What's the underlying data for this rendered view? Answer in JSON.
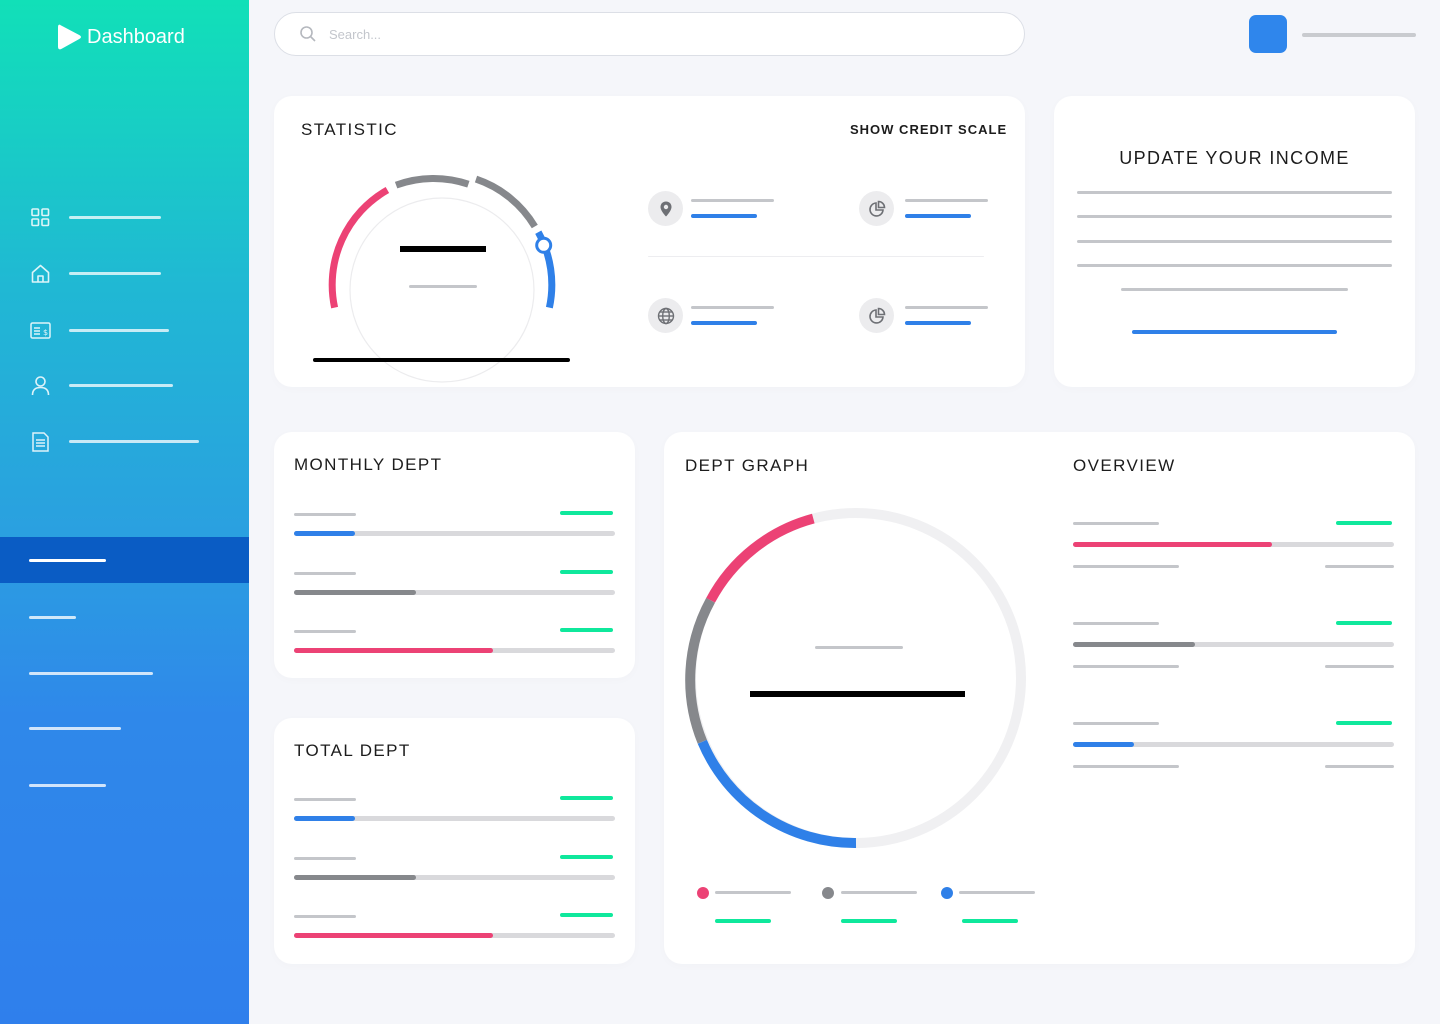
{
  "app": {
    "title": "Dashboard"
  },
  "search": {
    "placeholder": "Search..."
  },
  "nav": {
    "items": [
      {
        "icon": "grid-icon"
      },
      {
        "icon": "home-icon"
      },
      {
        "icon": "receipt-icon"
      },
      {
        "icon": "user-icon"
      },
      {
        "icon": "document-icon"
      }
    ]
  },
  "statistic": {
    "title": "STATISTIC",
    "link_label": "SHOW CREDIT SCALE",
    "items": [
      {
        "icon": "location-pin-icon"
      },
      {
        "icon": "pie-chart-icon"
      },
      {
        "icon": "globe-icon"
      },
      {
        "icon": "pie-chart-icon"
      }
    ]
  },
  "income": {
    "title": "UPDATE YOUR INCOME"
  },
  "monthly_dept": {
    "title": "MONTHLY DEPT",
    "bars": [
      {
        "progress": 0.19,
        "color": "#2f80e8"
      },
      {
        "progress": 0.38,
        "color": "#86888c"
      },
      {
        "progress": 0.62,
        "color": "#ec4275"
      }
    ]
  },
  "total_dept": {
    "title": "TOTAL DEPT",
    "bars": [
      {
        "progress": 0.19,
        "color": "#2f80e8"
      },
      {
        "progress": 0.38,
        "color": "#86888c"
      },
      {
        "progress": 0.62,
        "color": "#ec4275"
      }
    ]
  },
  "dept_graph": {
    "title": "DEPT GRAPH",
    "segments": [
      {
        "color": "#ec4275"
      },
      {
        "color": "#86888c"
      },
      {
        "color": "#2f80e8"
      }
    ]
  },
  "overview": {
    "title": "OVERVIEW",
    "bars": [
      {
        "progress": 0.62,
        "color": "#ec4275"
      },
      {
        "progress": 0.38,
        "color": "#86888c"
      },
      {
        "progress": 0.19,
        "color": "#2f80e8"
      }
    ]
  },
  "colors": {
    "accent": "#2f80e8",
    "pink": "#ec4275",
    "gray": "#86888c",
    "mint": "#0fe89c"
  }
}
